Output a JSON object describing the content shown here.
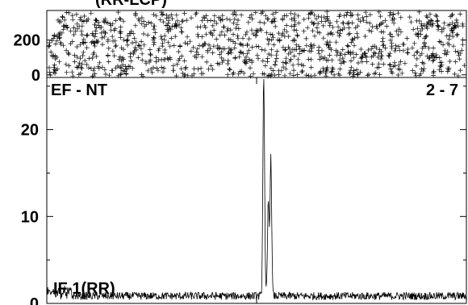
{
  "title_fragment": "(RR-LCP)",
  "chart_data": [
    {
      "type": "scatter",
      "panel": "phase",
      "marker": "+",
      "yticks": [
        0,
        200
      ],
      "ylim": [
        -15,
        370
      ],
      "xlim": [
        0,
        1
      ],
      "point_count": 1100,
      "grid": false
    },
    {
      "type": "line",
      "panel": "amplitude",
      "label_left": "EF - NT",
      "label_right": "2 - 7",
      "series_label": "IF 1(RR)",
      "yticks": [
        0,
        10,
        20
      ],
      "ylim": [
        0,
        26
      ],
      "xlim": [
        0,
        1
      ],
      "noise_level": 1,
      "peaks": [
        {
          "x": 0.517,
          "y": 25.6
        },
        {
          "x": 0.528,
          "y": 10.8
        },
        {
          "x": 0.534,
          "y": 15.8
        }
      ],
      "grid": false
    }
  ]
}
